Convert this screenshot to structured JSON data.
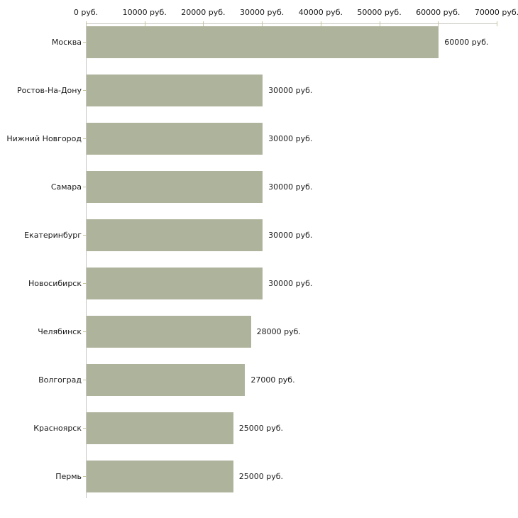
{
  "chart": {
    "background_color": "#ffffff",
    "bar_color": "#aeb39b",
    "axis_color": "#c7c7c2",
    "tick_color": "#c9c39b",
    "text_color": "#1a1a1a"
  },
  "chart_data": {
    "type": "bar",
    "orientation": "horizontal",
    "title": "",
    "xlabel": "",
    "ylabel": "",
    "grid": false,
    "legend": false,
    "categories": [
      "Москва",
      "Ростов-На-Дону",
      "Нижний Новгород",
      "Самара",
      "Екатеринбург",
      "Новосибирск",
      "Челябинск",
      "Волгоград",
      "Красноярск",
      "Пермь"
    ],
    "values": [
      60000,
      30000,
      30000,
      30000,
      30000,
      30000,
      28000,
      27000,
      25000,
      25000
    ],
    "value_labels": [
      "60000 руб.",
      "30000 руб.",
      "30000 руб.",
      "30000 руб.",
      "30000 руб.",
      "30000 руб.",
      "28000 руб.",
      "27000 руб.",
      "25000 руб.",
      "25000 руб."
    ],
    "x_axis": {
      "position": "top",
      "xlim": [
        0,
        70000
      ],
      "ticks": [
        0,
        10000,
        20000,
        30000,
        40000,
        50000,
        60000,
        70000
      ],
      "tick_labels": [
        "0 руб.",
        "10000 руб.",
        "20000 руб.",
        "30000 руб.",
        "40000 руб.",
        "50000 руб.",
        "60000 руб.",
        "70000 руб."
      ]
    }
  }
}
